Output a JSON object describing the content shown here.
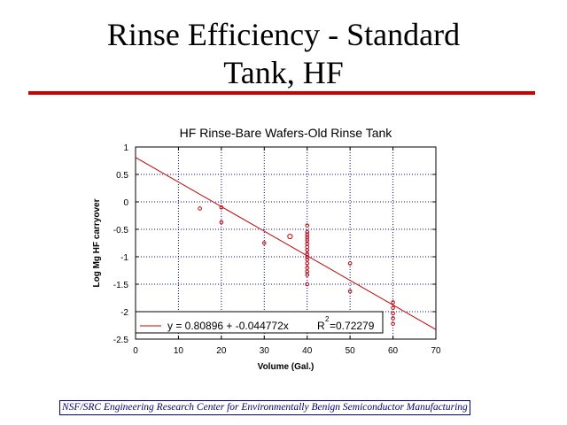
{
  "slide": {
    "title_line1": "Rinse Efficiency  - Standard",
    "title_line2": "Tank, HF",
    "footer": "NSF/SRC Engineering Research Center for Environmentally Benign Semiconductor Manufacturing",
    "accent_color": "#cc0000",
    "footer_color": "#000080"
  },
  "chart_data": {
    "type": "scatter",
    "title": "HF Rinse-Bare Wafers-Old Rinse Tank",
    "xlabel": "Volume (Gal.)",
    "ylabel": "Log Mg HF carryover",
    "xlim": [
      0,
      70
    ],
    "ylim": [
      -2.5,
      1
    ],
    "xticks": [
      "0",
      "10",
      "20",
      "30",
      "40",
      "50",
      "60",
      "70"
    ],
    "yticks": [
      "1",
      "0.5",
      "0",
      "-0.5",
      "-1",
      "-1.5",
      "-2",
      "-2.5"
    ],
    "grid": true,
    "series_color": "#cc0000",
    "grid_color": "#0000cc",
    "points": [
      {
        "x": 15,
        "y": -0.12
      },
      {
        "x": 20,
        "y": -0.1
      },
      {
        "x": 20,
        "y": -0.37
      },
      {
        "x": 30,
        "y": -0.75
      },
      {
        "x": 36,
        "y": -0.63,
        "large": true
      },
      {
        "x": 40,
        "y": -0.43
      },
      {
        "x": 40,
        "y": -0.55
      },
      {
        "x": 40,
        "y": -0.6
      },
      {
        "x": 40,
        "y": -0.65
      },
      {
        "x": 40,
        "y": -0.7
      },
      {
        "x": 40,
        "y": -0.76
      },
      {
        "x": 40,
        "y": -0.82
      },
      {
        "x": 40,
        "y": -0.88
      },
      {
        "x": 40,
        "y": -0.95
      },
      {
        "x": 40,
        "y": -1.0
      },
      {
        "x": 40,
        "y": -1.05
      },
      {
        "x": 40,
        "y": -1.12
      },
      {
        "x": 40,
        "y": -1.2
      },
      {
        "x": 40,
        "y": -1.27
      },
      {
        "x": 40,
        "y": -1.33
      },
      {
        "x": 40,
        "y": -1.5
      },
      {
        "x": 50,
        "y": -1.12
      },
      {
        "x": 50,
        "y": -1.63
      },
      {
        "x": 60,
        "y": -1.83
      },
      {
        "x": 60,
        "y": -1.93
      },
      {
        "x": 60,
        "y": -2.03
      },
      {
        "x": 60,
        "y": -2.12
      },
      {
        "x": 60,
        "y": -2.22
      }
    ],
    "fit": {
      "intercept": 0.80896,
      "slope": -0.044772,
      "x_range": [
        0,
        70
      ]
    },
    "legend": {
      "equation": "y = 0.80896 + -0.044772x",
      "r2_label": "R",
      "r2_exp": "2",
      "r2_value": "=0.72279",
      "position": "bottom-left"
    }
  }
}
